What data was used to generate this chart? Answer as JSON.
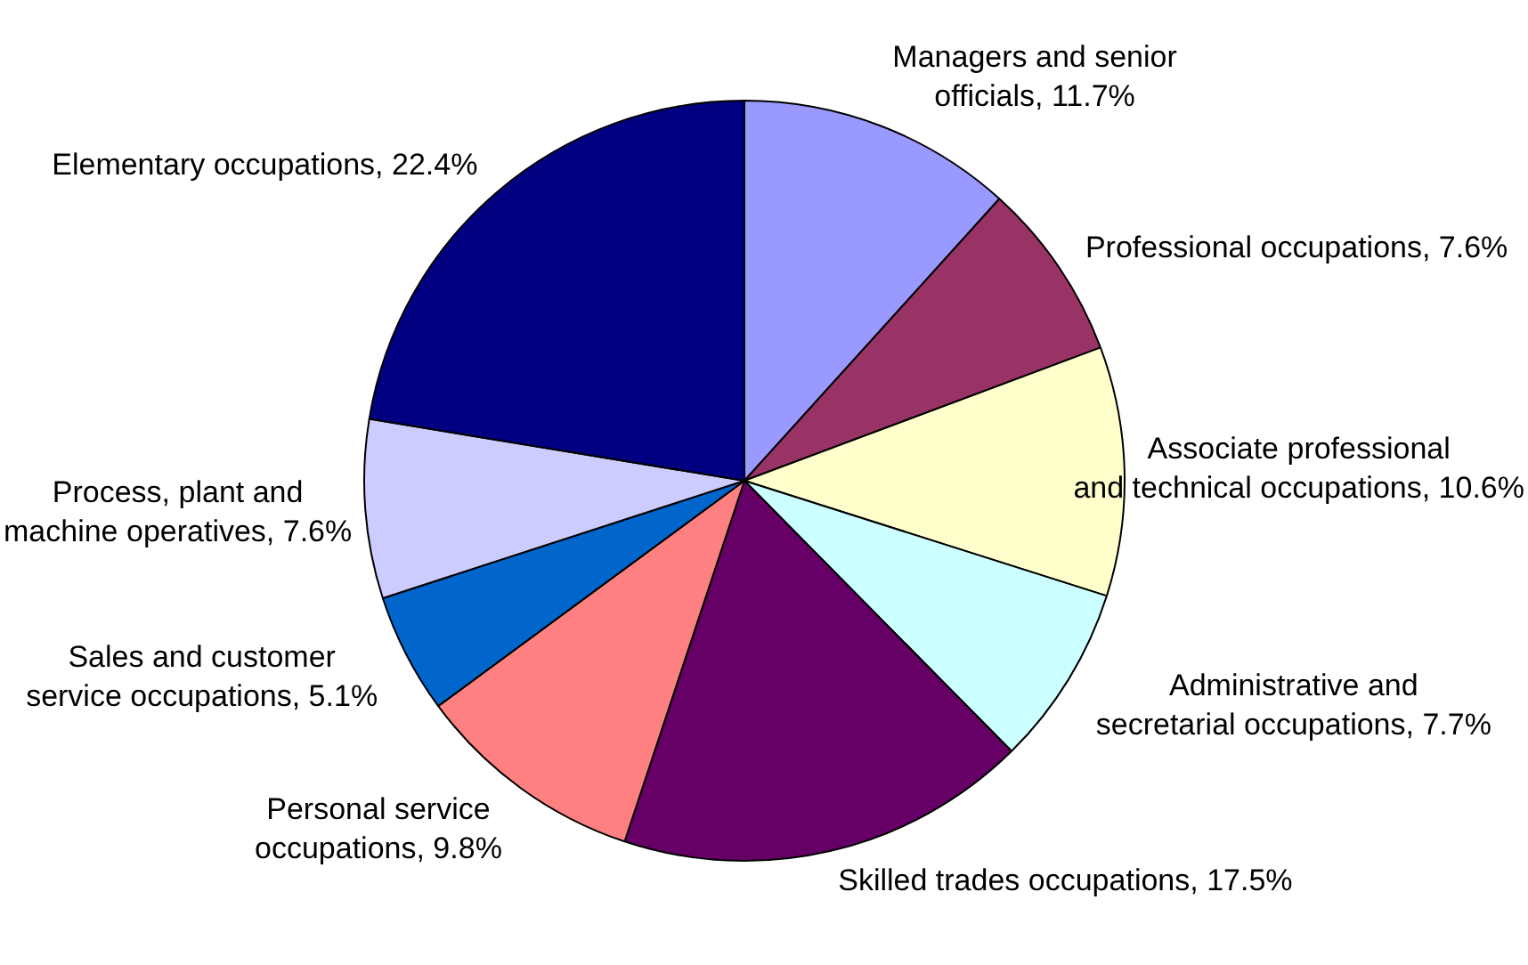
{
  "chart_data": {
    "type": "pie",
    "categories": [
      "Managers and senior officials",
      "Professional occupations",
      "Associate professional and technical occupations",
      "Administrative and secretarial occupations",
      "Skilled trades occupations",
      "Personal service occupations",
      "Sales and customer service occupations",
      "Process, plant and machine operatives",
      "Elementary occupations"
    ],
    "values": [
      11.7,
      7.6,
      10.6,
      7.7,
      17.5,
      9.8,
      5.1,
      7.6,
      22.4
    ],
    "value_labels": [
      "11.7%",
      "7.6%",
      "10.6%",
      "7.7%",
      "17.5%",
      "9.8%",
      "5.1%",
      "7.6%",
      "22.4%"
    ],
    "colors": [
      "#9999ff",
      "#993366",
      "#ffffcc",
      "#ccffff",
      "#660066",
      "#ff8080",
      "#0066cc",
      "#ccccff",
      "#000080"
    ],
    "legend": false
  }
}
